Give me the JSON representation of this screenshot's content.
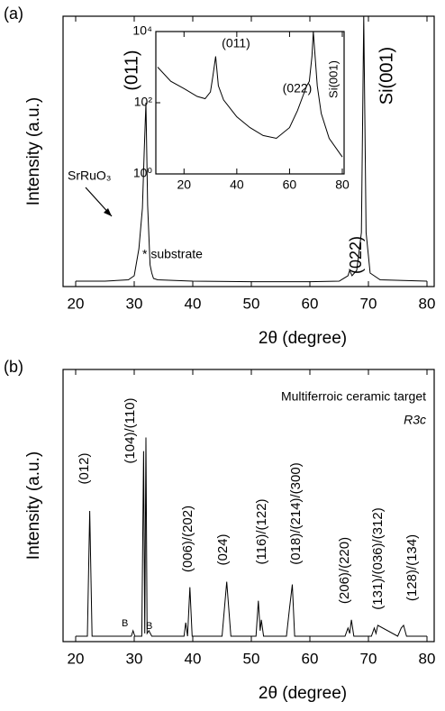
{
  "chart_data": [
    {
      "type": "line",
      "panel_label": "(a)",
      "y_label": "Intensity (a.u.)",
      "x_label": "2θ (degree)",
      "xlim": [
        20,
        80
      ],
      "xticks": [
        20,
        30,
        40,
        50,
        60,
        70,
        80
      ],
      "ylim": [
        0,
        100
      ],
      "color": "#000000",
      "series": [
        {
          "x": [
            20,
            25,
            29,
            30,
            30.8,
            31.4,
            31.7,
            32,
            32.3,
            32.7,
            33,
            33.3,
            34,
            40,
            50,
            60,
            65,
            66.5,
            66.8,
            67.2,
            68,
            68.8,
            69.2,
            69.6,
            70.3,
            72,
            80
          ],
          "values": [
            2,
            2,
            2.5,
            4,
            14,
            29,
            50,
            68,
            30,
            8,
            5,
            3,
            2.5,
            2,
            1.8,
            1.8,
            2,
            4,
            6,
            4,
            6,
            20,
            100,
            20,
            5,
            2.5,
            2
          ]
        }
      ],
      "annotations": [
        "(011)",
        "SrRuO₃",
        "* substrate",
        "(022)",
        "Si(001)"
      ]
    },
    {
      "type": "line",
      "log_y": true,
      "xlim": [
        10,
        80
      ],
      "xticks": [
        20,
        40,
        60,
        80
      ],
      "ylim": [
        1,
        10000
      ],
      "yticks": [
        {
          "value": 1,
          "label": "10⁰"
        },
        {
          "value": 100,
          "label": "10²"
        },
        {
          "value": 10000,
          "label": "10⁴"
        }
      ],
      "color": "#000000",
      "series": [
        {
          "x": [
            10,
            15,
            20,
            25,
            28,
            30,
            31,
            32,
            33,
            35,
            40,
            45,
            50,
            55,
            60,
            63,
            65,
            66.5,
            67.5,
            68.5,
            69,
            69.5,
            70.5,
            72,
            75,
            80
          ],
          "values": [
            1000,
            400,
            250,
            150,
            130,
            200,
            600,
            2000,
            300,
            120,
            40,
            20,
            12,
            10,
            20,
            60,
            150,
            300,
            400,
            2000,
            10000,
            3000,
            300,
            50,
            10,
            3
          ]
        }
      ],
      "annotations": [
        "(011)",
        "(022)",
        "Si(001)"
      ]
    },
    {
      "type": "line",
      "panel_label": "(b)",
      "y_label": "Intensity (a.u.)",
      "x_label": "2θ (degree)",
      "xlim": [
        20,
        80
      ],
      "xticks": [
        20,
        30,
        40,
        50,
        60,
        70,
        80
      ],
      "ylim": [
        0,
        100
      ],
      "color": "#000000",
      "series": [
        {
          "x": [
            20,
            22,
            22.4,
            22.8,
            25,
            29.5,
            29.8,
            30.1,
            31.3,
            31.6,
            31.8,
            32,
            32.2,
            32.5,
            33,
            38.5,
            38.8,
            39.1,
            39.5,
            39.9,
            45,
            45.8,
            46.5,
            50.8,
            51.2,
            51.5,
            51.7,
            52.1,
            56,
            56.5,
            57,
            57.4,
            66,
            66.5,
            66.8,
            67.1,
            67.5,
            70.5,
            71,
            71.3,
            71.6,
            75,
            75.6,
            76,
            76.5,
            80
          ],
          "values": [
            2,
            2,
            48,
            2,
            2,
            2,
            4,
            2,
            2,
            70,
            3,
            75,
            3,
            4,
            2,
            2,
            7,
            2,
            20,
            2,
            2,
            22,
            2,
            2,
            15,
            4,
            8,
            2,
            2,
            12,
            21,
            2,
            2,
            5,
            3,
            8,
            2,
            2,
            5,
            3,
            6,
            2,
            5,
            6,
            2,
            2
          ]
        }
      ],
      "annotations": [
        "Multiferroic ceramic target",
        "R3c",
        "(012)",
        "(104)/(110)",
        "(006)/(202)",
        "(024)",
        "(116)/(122)",
        "(018)/(214)/(300)",
        "(206)/(220)",
        "(131)/(036)/(312)",
        "(128)/(134)",
        "B",
        "B"
      ]
    }
  ]
}
